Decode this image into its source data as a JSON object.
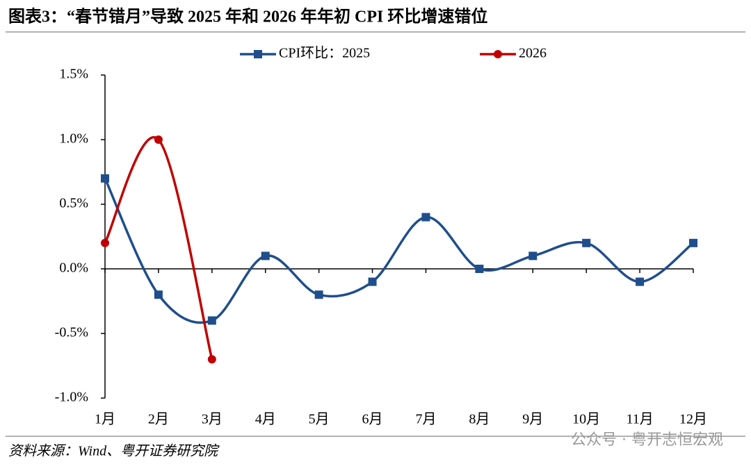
{
  "title": "图表3：“春节错月”导致 2025 年和 2026 年年初 CPI 环比增速错位",
  "chart_data": {
    "type": "line",
    "categories": [
      "1月",
      "2月",
      "3月",
      "4月",
      "5月",
      "6月",
      "7月",
      "8月",
      "9月",
      "10月",
      "11月",
      "12月"
    ],
    "series": [
      {
        "name": "CPI环比：2025",
        "color": "#1f4e8c",
        "marker": "square",
        "values": [
          0.7,
          -0.2,
          -0.4,
          0.1,
          -0.2,
          -0.1,
          0.4,
          0.0,
          0.1,
          0.2,
          -0.1,
          0.2
        ]
      },
      {
        "name": "2026",
        "color": "#c00000",
        "marker": "circle",
        "values": [
          0.2,
          1.0,
          -0.7,
          null,
          null,
          null,
          null,
          null,
          null,
          null,
          null,
          null
        ]
      }
    ],
    "ylim": [
      -1.0,
      1.5
    ],
    "yticks": [
      {
        "value": -1.0,
        "label": "-1.0%"
      },
      {
        "value": -0.5,
        "label": "-0.5%"
      },
      {
        "value": 0.0,
        "label": "0.0%"
      },
      {
        "value": 0.5,
        "label": "0.5%"
      },
      {
        "value": 1.0,
        "label": "1.0%"
      },
      {
        "value": 1.5,
        "label": "1.5%"
      }
    ],
    "smooth": true
  },
  "source": "资料来源：Wind、粤开证券研究院",
  "watermark": "公众号 · 粤开志恒宏观"
}
